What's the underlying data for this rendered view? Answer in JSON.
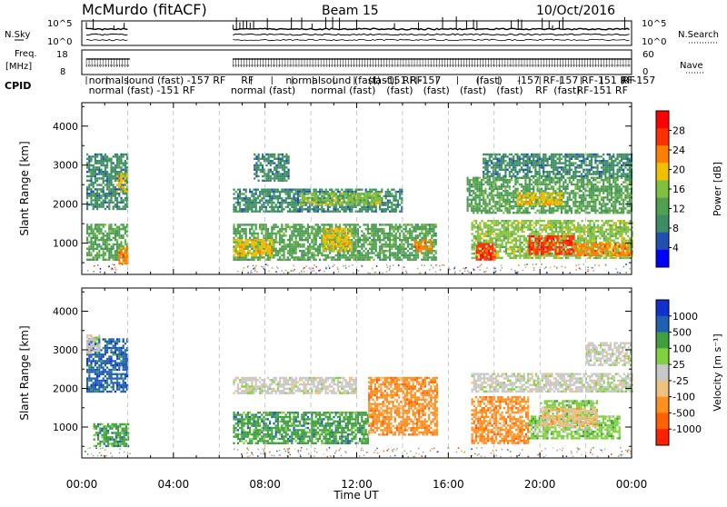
{
  "header": {
    "station": "McMurdo (fitACF)",
    "beam": "Beam 15",
    "date": "10/Oct/2016"
  },
  "top_panels": {
    "nsky_label": "N.Sky",
    "nsearch_label": "N.Search",
    "noise_ticks": [
      "10^5",
      "10^0"
    ],
    "freq_label_1": "Freq.",
    "freq_label_2": "[MHz]",
    "freq_ticks": [
      "18",
      "8"
    ],
    "nave_label": "Nave",
    "nave_ticks": [
      "60",
      "0"
    ],
    "cpid_label": "CPID",
    "cpid_row1": [
      {
        "text": "normalsound (fast) -157 RF",
        "t": 0.3
      },
      {
        "text": "RF",
        "t": 6.95
      },
      {
        "text": "normalsound (fast) -151 RF",
        "t": 8.9
      },
      {
        "text": "(fast)",
        "t": 12.5
      },
      {
        "text": "RF -157",
        "t": 14.0
      },
      {
        "text": "(fast)",
        "t": 17.2
      },
      {
        "text": "-157 RF-157 RF-151 RF-157",
        "t": 19.0
      },
      {
        "text": "RF",
        "t": 23.6
      }
    ],
    "cpid_row2": [
      {
        "text": "normal (fast) -151 RF",
        "t": 0.3
      },
      {
        "text": "normal (fast)",
        "t": 6.5
      },
      {
        "text": "normal (fast)",
        "t": 10.0
      },
      {
        "text": "(fast)",
        "t": 13.3
      },
      {
        "text": "(fast)",
        "t": 14.9
      },
      {
        "text": "(fast)",
        "t": 16.5
      },
      {
        "text": "(fast)",
        "t": 18.1
      },
      {
        "text": "RF",
        "t": 19.8
      },
      {
        "text": "(fast)",
        "t": 20.6
      },
      {
        "text": "RF-151 RF",
        "t": 21.6
      }
    ]
  },
  "colors": {
    "power": [
      "#0000ff",
      "#2050b0",
      "#3c8c64",
      "#50a050",
      "#80c040",
      "#f0c000",
      "#ff8000",
      "#ff3000",
      "#ff0000"
    ],
    "velocity": [
      "#1030d0",
      "#2060b0",
      "#40a040",
      "#80d040",
      "#c8c8c8",
      "#f0c080",
      "#ff9020",
      "#ff6000",
      "#ff2000"
    ],
    "ground": "#a0a0a0"
  },
  "chart_data": [
    {
      "type": "heatmap",
      "name": "power",
      "xlabel": "Time UT",
      "ylabel": "Slant Range [km]",
      "xlim": [
        0,
        24
      ],
      "ylim": [
        200,
        4600
      ],
      "yticks": [
        1000,
        2000,
        3000,
        4000
      ],
      "xticks": [
        "00:00",
        "04:00",
        "08:00",
        "12:00",
        "16:00",
        "20:00",
        "00:00"
      ],
      "xtick_values": [
        0,
        4,
        8,
        12,
        16,
        20,
        24
      ],
      "colorbar_label": "Power [dB]",
      "colorbar_ticks": [
        "28",
        "24",
        "20",
        "16",
        "12",
        "8",
        "4"
      ],
      "clim": [
        0,
        30
      ],
      "data_gap": [
        2.1,
        6.6
      ],
      "echo_regions": [
        {
          "t0": 0.2,
          "t1": 2.0,
          "r0": 600,
          "r1": 1500,
          "value": 10
        },
        {
          "t0": 1.6,
          "t1": 2.0,
          "r0": 500,
          "r1": 900,
          "value": 21
        },
        {
          "t0": 0.2,
          "t1": 2.0,
          "r0": 1900,
          "r1": 3300,
          "value": 8
        },
        {
          "t0": 1.5,
          "t1": 2.0,
          "r0": 2300,
          "r1": 2800,
          "value": 20
        },
        {
          "t0": 6.6,
          "t1": 15.5,
          "r0": 600,
          "r1": 1500,
          "value": 13
        },
        {
          "t0": 6.6,
          "t1": 8.3,
          "r0": 700,
          "r1": 1100,
          "value": 20
        },
        {
          "t0": 10.5,
          "t1": 11.8,
          "r0": 800,
          "r1": 1400,
          "value": 18
        },
        {
          "t0": 14.5,
          "t1": 15.2,
          "r0": 800,
          "r1": 1100,
          "value": 22
        },
        {
          "t0": 6.6,
          "t1": 14.0,
          "r0": 1800,
          "r1": 2400,
          "value": 8
        },
        {
          "t0": 9.5,
          "t1": 13.0,
          "r0": 2000,
          "r1": 2300,
          "value": 14
        },
        {
          "t0": 7.5,
          "t1": 9.0,
          "r0": 2600,
          "r1": 3300,
          "value": 7
        },
        {
          "t0": 17.0,
          "t1": 24.0,
          "r0": 600,
          "r1": 1600,
          "value": 16
        },
        {
          "t0": 17.2,
          "t1": 18.0,
          "r0": 600,
          "r1": 1000,
          "value": 26
        },
        {
          "t0": 19.5,
          "t1": 21.5,
          "r0": 700,
          "r1": 1200,
          "value": 27
        },
        {
          "t0": 21.5,
          "t1": 24.0,
          "r0": 700,
          "r1": 1000,
          "value": 24
        },
        {
          "t0": 16.8,
          "t1": 24.0,
          "r0": 1800,
          "r1": 2700,
          "value": 10
        },
        {
          "t0": 19.0,
          "t1": 21.0,
          "r0": 2000,
          "r1": 2300,
          "value": 18
        },
        {
          "t0": 17.5,
          "t1": 24.0,
          "r0": 2700,
          "r1": 3300,
          "value": 8
        }
      ]
    },
    {
      "type": "heatmap",
      "name": "velocity",
      "xlabel": "Time UT",
      "ylabel": "Slant Range [km]",
      "xlim": [
        0,
        24
      ],
      "ylim": [
        200,
        4600
      ],
      "yticks": [
        1000,
        2000,
        3000,
        4000
      ],
      "xticks": [
        "00:00",
        "04:00",
        "08:00",
        "12:00",
        "16:00",
        "20:00",
        "00:00"
      ],
      "xtick_values": [
        0,
        4,
        8,
        12,
        16,
        20,
        24
      ],
      "colorbar_label": "Velocity [m s⁻¹]",
      "colorbar_ticks": [
        "1000",
        "500",
        "100",
        "25",
        "-25",
        "-100",
        "-500",
        "-1000"
      ],
      "data_gap": [
        2.1,
        6.6
      ],
      "echo_regions": [
        {
          "t0": 0.2,
          "t1": 2.0,
          "r0": 1900,
          "r1": 3300,
          "value": 600,
          "color_index": 1
        },
        {
          "t0": 0.2,
          "t1": 0.8,
          "r0": 2900,
          "r1": 3400,
          "value": 20,
          "color_index": 4
        },
        {
          "t0": 0.5,
          "t1": 2.0,
          "r0": 500,
          "r1": 1100,
          "value": 300,
          "color_index": 2
        },
        {
          "t0": 6.6,
          "t1": 12.5,
          "r0": 600,
          "r1": 1400,
          "value": 300,
          "color_index": 2
        },
        {
          "t0": 6.6,
          "t1": 12.0,
          "r0": 1900,
          "r1": 2300,
          "value": 0,
          "color_index": 4
        },
        {
          "t0": 12.5,
          "t1": 15.5,
          "r0": 800,
          "r1": 2300,
          "value": -200,
          "color_index": 6
        },
        {
          "t0": 17.0,
          "t1": 19.5,
          "r0": 600,
          "r1": 1800,
          "value": -200,
          "color_index": 6
        },
        {
          "t0": 19.5,
          "t1": 23.5,
          "r0": 700,
          "r1": 1300,
          "value": 50,
          "color_index": 3
        },
        {
          "t0": 20.0,
          "t1": 22.5,
          "r0": 1300,
          "r1": 1700,
          "value": 50,
          "color_index": 3
        },
        {
          "t0": 17.0,
          "t1": 24.0,
          "r0": 1900,
          "r1": 2400,
          "value": 0,
          "color_index": 4
        },
        {
          "t0": 20.0,
          "t1": 22.5,
          "r0": 1000,
          "r1": 1500,
          "value": -100,
          "color_index": 5
        },
        {
          "t0": 22.0,
          "t1": 24.0,
          "r0": 2600,
          "r1": 3200,
          "value": 0,
          "color_index": 4
        }
      ]
    }
  ]
}
